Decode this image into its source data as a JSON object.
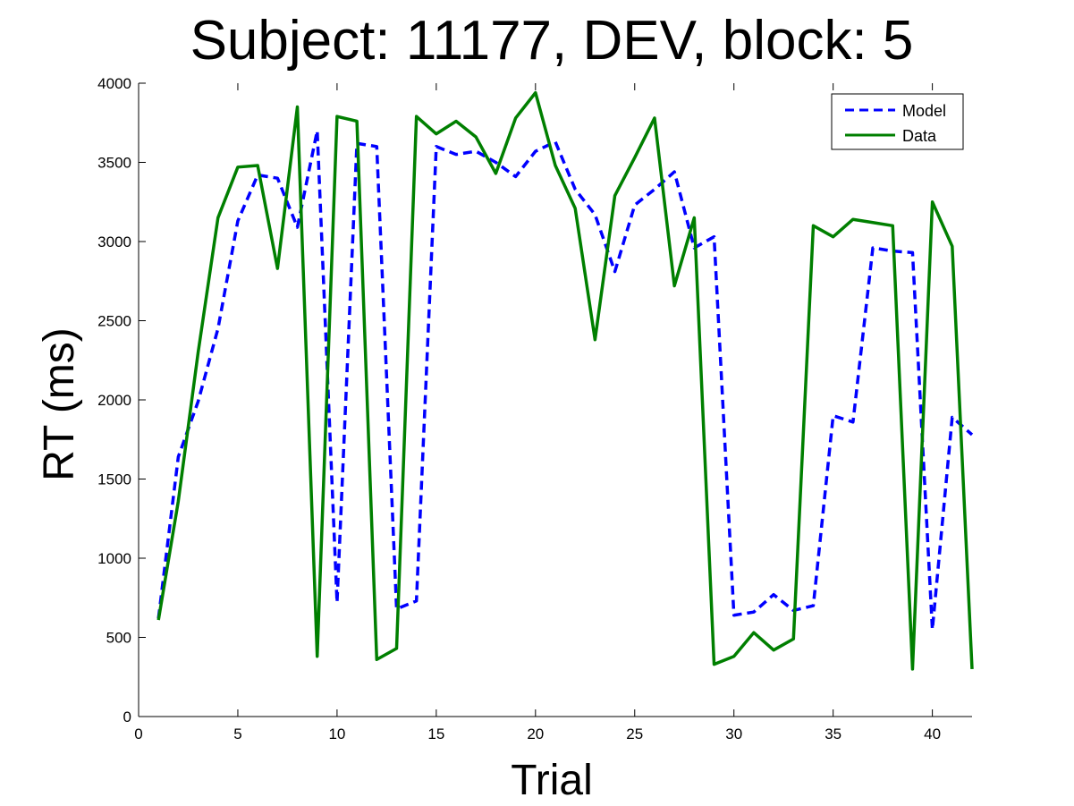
{
  "chart_data": {
    "type": "line",
    "title": "Subject: 11177, DEV, block: 5",
    "xlabel": "Trial",
    "ylabel": "RT (ms)",
    "xlim": [
      0,
      42
    ],
    "ylim": [
      0,
      4000
    ],
    "xticks": [
      0,
      5,
      10,
      15,
      20,
      25,
      30,
      35,
      40
    ],
    "yticks": [
      0,
      500,
      1000,
      1500,
      2000,
      2500,
      3000,
      3500,
      4000
    ],
    "grid": false,
    "legend_position": "top-right",
    "x": [
      1,
      2,
      3,
      4,
      5,
      6,
      7,
      8,
      9,
      10,
      11,
      12,
      13,
      14,
      15,
      16,
      17,
      18,
      19,
      20,
      21,
      22,
      23,
      24,
      25,
      26,
      27,
      28,
      29,
      30,
      31,
      32,
      33,
      34,
      35,
      36,
      37,
      38,
      39,
      40,
      41,
      42
    ],
    "series": [
      {
        "name": "Model",
        "color": "#0000ff",
        "style": "dashed",
        "values": [
          620,
          1640,
          1990,
          2450,
          3130,
          3420,
          3400,
          3090,
          3700,
          720,
          3620,
          3600,
          680,
          730,
          3600,
          3550,
          3570,
          3500,
          3410,
          3570,
          3630,
          3330,
          3170,
          2810,
          3230,
          3330,
          3440,
          2960,
          3030,
          640,
          660,
          770,
          670,
          700,
          1900,
          1860,
          2960,
          2940,
          2930,
          550,
          1890,
          1780
        ]
      },
      {
        "name": "Data",
        "color": "#007f00",
        "style": "solid",
        "values": [
          610,
          1360,
          2300,
          3150,
          3470,
          3480,
          2830,
          3850,
          380,
          3790,
          3760,
          360,
          430,
          3790,
          3680,
          3760,
          3660,
          3430,
          3780,
          3940,
          3480,
          3210,
          2380,
          3290,
          3530,
          3780,
          2720,
          3150,
          330,
          380,
          530,
          420,
          490,
          3100,
          3030,
          3140,
          3120,
          3100,
          300,
          3250,
          2970,
          300
        ]
      }
    ]
  }
}
